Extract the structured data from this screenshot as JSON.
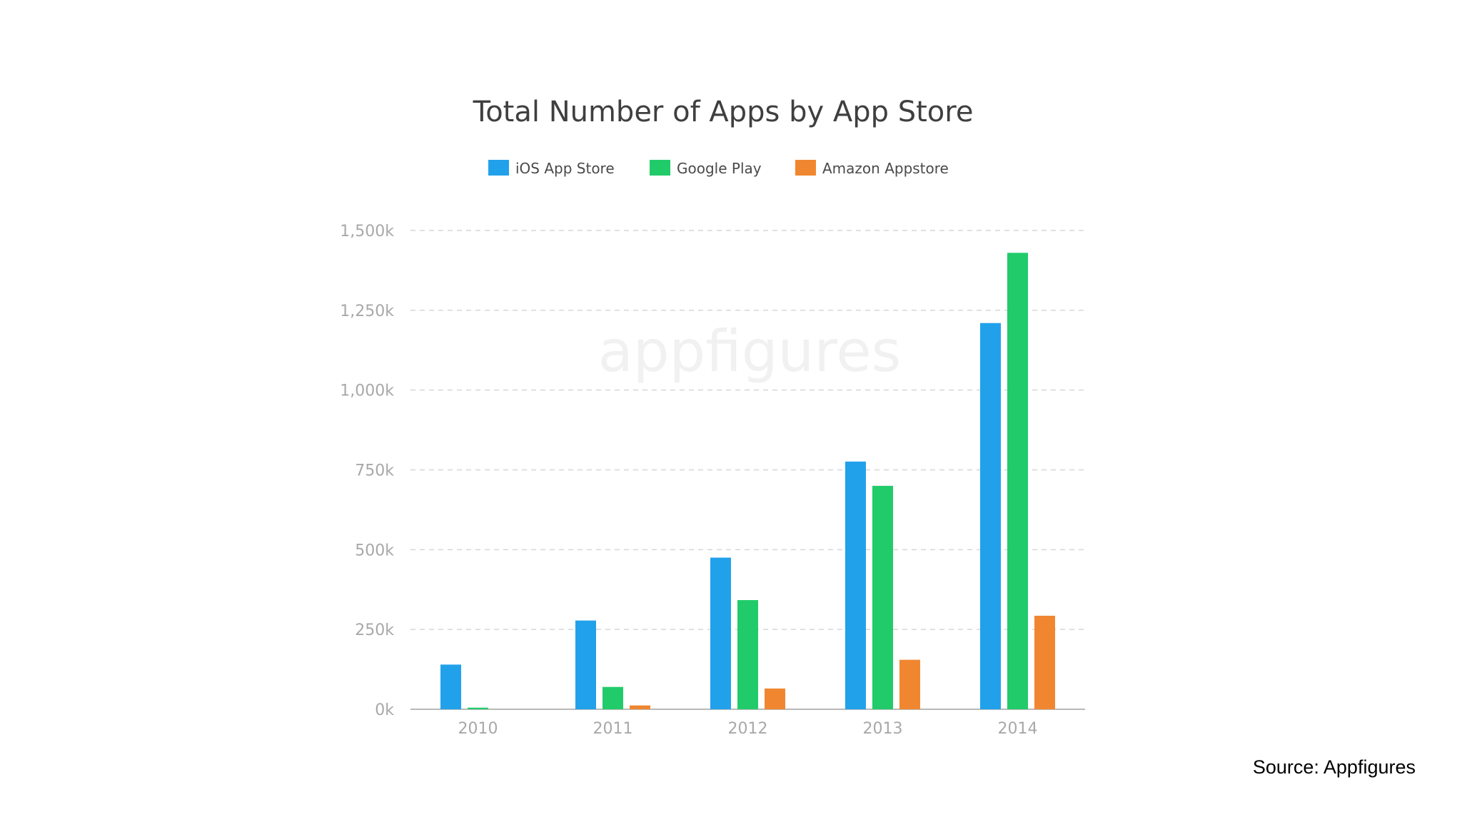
{
  "source_note": "Source: Appfigures",
  "watermark": "appfigures",
  "chart_data": {
    "type": "bar",
    "title": "Total Number of Apps by App Store",
    "xlabel": "",
    "ylabel": "",
    "categories": [
      "2010",
      "2011",
      "2012",
      "2013",
      "2014"
    ],
    "series": [
      {
        "name": "iOS App Store",
        "color": "#22a1eb",
        "values": [
          140,
          278,
          475,
          776,
          1210
        ]
      },
      {
        "name": "Google Play",
        "color": "#22cb6a",
        "values": [
          5,
          70,
          342,
          700,
          1430
        ]
      },
      {
        "name": "Amazon Appstore",
        "color": "#f08730",
        "values": [
          0,
          12,
          65,
          155,
          293
        ]
      }
    ],
    "y_ticks": [
      "0k",
      "250k",
      "500k",
      "750k",
      "1,000k",
      "1,250k",
      "1,500k"
    ],
    "ylim": [
      0,
      1500
    ],
    "y_unit": "k",
    "grid": true,
    "legend_position": "top-center"
  }
}
